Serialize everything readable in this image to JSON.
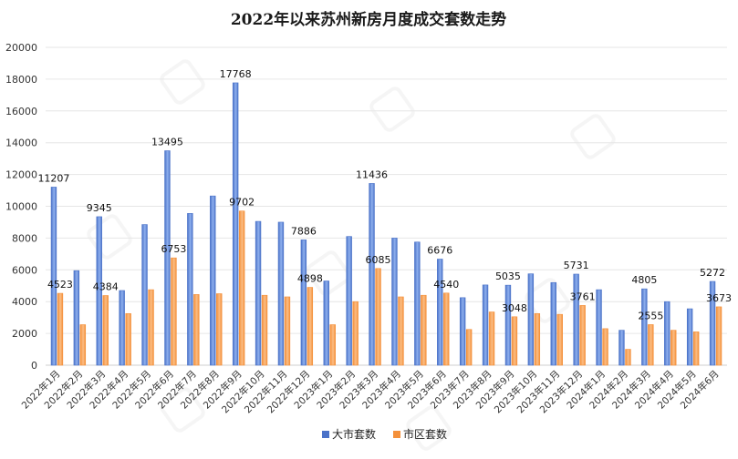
{
  "chart_data": {
    "type": "bar",
    "title": "2022年以来苏州新房月度成交套数走势",
    "xlabel": "",
    "ylabel": "",
    "ylim": [
      0,
      20000
    ],
    "yticks": [
      0,
      2000,
      4000,
      6000,
      8000,
      10000,
      12000,
      14000,
      16000,
      18000,
      20000
    ],
    "grid": true,
    "legend_position": "bottom",
    "categories": [
      "2022年1月",
      "2022年2月",
      "2022年3月",
      "2022年4月",
      "2022年5月",
      "2022年6月",
      "2022年7月",
      "2022年8月",
      "2022年9月",
      "2022年10月",
      "2022年11月",
      "2022年12月",
      "2023年1月",
      "2023年2月",
      "2023年3月",
      "2023年4月",
      "2023年5月",
      "2023年6月",
      "2023年7月",
      "2023年8月",
      "2023年9月",
      "2023年10月",
      "2023年11月",
      "2023年12月",
      "2024年1月",
      "2024年2月",
      "2024年3月",
      "2024年4月",
      "2024年5月",
      "2024年6月"
    ],
    "series": [
      {
        "name": "大市套数",
        "color": "#4a72c8",
        "values": [
          11207,
          5950,
          9345,
          4700,
          8850,
          13495,
          9550,
          10650,
          17768,
          9050,
          9000,
          7886,
          5300,
          8100,
          11436,
          8000,
          7750,
          6676,
          4250,
          5050,
          5035,
          5750,
          5200,
          5731,
          4750,
          2200,
          4805,
          4000,
          3550,
          5272
        ],
        "labels": {
          "0": "11207",
          "2": "9345",
          "5": "13495",
          "8": "17768",
          "11": "7886",
          "14": "11436",
          "17": "6676",
          "20": "5035",
          "23": "5731",
          "26": "4805",
          "29": "5272"
        }
      },
      {
        "name": "市区套数",
        "color": "#f4903a",
        "values": [
          4523,
          2550,
          4384,
          3250,
          4750,
          6753,
          4450,
          4500,
          9702,
          4400,
          4300,
          4898,
          2550,
          4000,
          6085,
          4300,
          4400,
          4540,
          2250,
          3350,
          3048,
          3250,
          3200,
          3761,
          2300,
          1000,
          2555,
          2200,
          2100,
          3673
        ],
        "labels": {
          "0": "4523",
          "2": "4384",
          "5": "6753",
          "8": "9702",
          "11": "4898",
          "14": "6085",
          "17": "4540",
          "20": "3048",
          "23": "3761",
          "26": "2555",
          "29": "3673"
        }
      }
    ]
  }
}
